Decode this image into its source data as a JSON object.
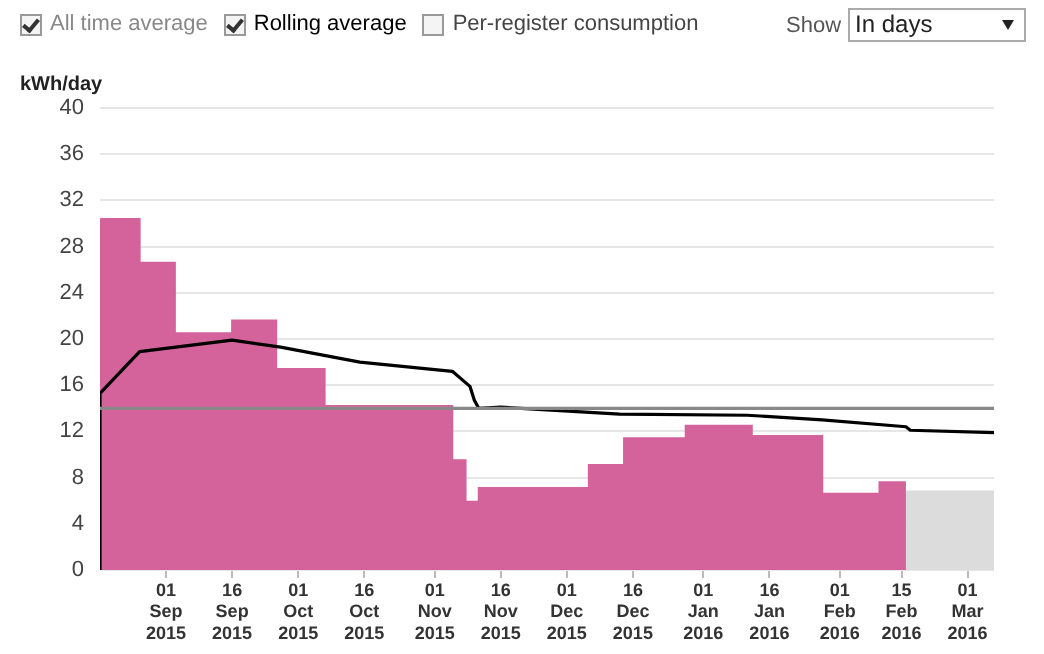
{
  "chart_data": {
    "type": "area",
    "ylabel": "kWh/day",
    "xlim": [
      "2015-08-17",
      "2016-03-07"
    ],
    "xticks": [
      {
        "value": "2015-09-01",
        "label": "01 Sep 2015"
      },
      {
        "value": "2015-09-16",
        "label": "16 Sep 2015"
      },
      {
        "value": "2015-10-01",
        "label": "01 Oct 2015"
      },
      {
        "value": "2015-10-16",
        "label": "16 Oct 2015"
      },
      {
        "value": "2015-11-01",
        "label": "01 Nov 2015"
      },
      {
        "value": "2015-11-16",
        "label": "16 Nov 2015"
      },
      {
        "value": "2015-12-01",
        "label": "01 Dec 2015"
      },
      {
        "value": "2015-12-16",
        "label": "16 Dec 2015"
      },
      {
        "value": "2016-01-01",
        "label": "01 Jan 2016"
      },
      {
        "value": "2016-01-16",
        "label": "16 Jan 2016"
      },
      {
        "value": "2016-02-01",
        "label": "01 Feb 2016"
      },
      {
        "value": "2016-02-15",
        "label": "15 Feb 2016"
      },
      {
        "value": "2016-03-01",
        "label": "01 Mar 2016"
      }
    ],
    "ylim": [
      0,
      40
    ],
    "yticks": [
      0,
      4,
      8,
      12,
      16,
      20,
      24,
      28,
      32,
      36,
      40
    ],
    "grid": "y",
    "legend": "top left",
    "series": [
      {
        "color": "#d4629b",
        "x": [
          "2015-08-17",
          "2015-08-26",
          "2015-08-26",
          "2015-09-03",
          "2015-09-03",
          "2015-09-16",
          "2015-09-16",
          "2015-09-26",
          "2015-09-26",
          "2015-10-07",
          "2015-10-07",
          "2015-11-05",
          "2015-11-05",
          "2015-11-08",
          "2015-11-08",
          "2015-11-11",
          "2015-11-11",
          "2015-12-06",
          "2015-12-06",
          "2015-12-14",
          "2015-12-14",
          "2015-12-28",
          "2015-12-28",
          "2016-01-12",
          "2016-01-12",
          "2016-01-28",
          "2016-01-28",
          "2016-02-10",
          "2016-02-10",
          "2016-02-16"
        ],
        "values": [
          30.4,
          30.4,
          26.6,
          26.6,
          20.5,
          20.5,
          21.6,
          21.6,
          17.4,
          17.4,
          14.2,
          14.2,
          9.5,
          9.5,
          5.9,
          5.9,
          7.1,
          7.1,
          9.1,
          9.1,
          11.4,
          11.4,
          12.5,
          12.5,
          11.6,
          11.6,
          6.6,
          6.6,
          7.6,
          7.6
        ]
      },
      {
        "color": "#dcdcdc",
        "x": [
          "2016-02-16",
          "2016-03-07"
        ],
        "values": [
          6.8,
          6.8
        ]
      },
      {
        "type": "line",
        "name": "All time average",
        "color": "#888888",
        "x": [
          "2015-08-17",
          "2016-03-07"
        ],
        "values": [
          14,
          14
        ]
      },
      {
        "type": "line",
        "name": "Rolling average",
        "color": "#000000",
        "x": [
          "2015-08-17",
          "2015-08-17",
          "2015-08-26",
          "2015-09-16",
          "2015-09-27",
          "2015-10-15",
          "2015-11-05",
          "2015-11-09",
          "2015-11-10",
          "2015-11-11",
          "2015-11-16",
          "2015-12-13",
          "2016-01-11",
          "2016-01-28",
          "2016-02-16",
          "2016-02-17",
          "2016-03-07"
        ],
        "values": [
          0,
          15.3,
          18.9,
          19.9,
          19.3,
          18.0,
          17.2,
          15.9,
          14.7,
          14.0,
          14.1,
          13.5,
          13.4,
          13.0,
          12.4,
          12.1,
          11.9
        ]
      }
    ],
    "annotations": [
      "Per-register consumption",
      "Show",
      "In days"
    ]
  }
}
